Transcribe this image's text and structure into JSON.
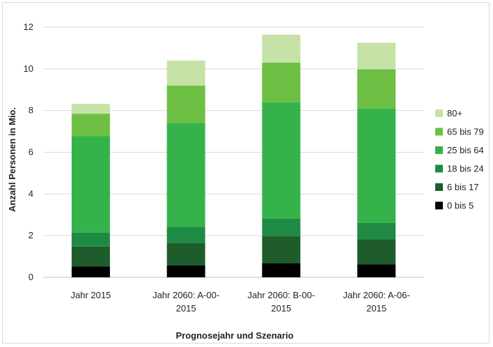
{
  "chart_data": {
    "type": "bar",
    "stacked": true,
    "title": "",
    "xlabel": "Prognosejahr und Szenario",
    "ylabel": "Anzahl Personen in Mio.",
    "ylim": [
      0,
      12
    ],
    "yticks": [
      0,
      2,
      4,
      6,
      8,
      10,
      12
    ],
    "grid": true,
    "legend_position": "right",
    "categories": [
      [
        "Jahr 2015"
      ],
      [
        "Jahr 2060: A-00-",
        "2015"
      ],
      [
        "Jahr 2060: B-00-",
        "2015"
      ],
      [
        "Jahr 2060: A-06-",
        "2015"
      ]
    ],
    "series": [
      {
        "name": "0 bis 5",
        "color": "#000000",
        "values": [
          0.52,
          0.57,
          0.67,
          0.62
        ]
      },
      {
        "name": "6 bis 17",
        "color": "#1e5c2c",
        "values": [
          0.96,
          1.08,
          1.3,
          1.2
        ]
      },
      {
        "name": "18 bis 24",
        "color": "#1f8a43",
        "values": [
          0.67,
          0.77,
          0.85,
          0.8
        ]
      },
      {
        "name": "25 bis 64",
        "color": "#35b34a",
        "values": [
          4.62,
          4.98,
          5.58,
          5.48
        ]
      },
      {
        "name": "65 bis 79",
        "color": "#6dbf44",
        "values": [
          1.08,
          1.8,
          1.9,
          1.88
        ]
      },
      {
        "name": "80+",
        "color": "#c6e2a6",
        "values": [
          0.47,
          1.2,
          1.34,
          1.27
        ]
      }
    ]
  }
}
